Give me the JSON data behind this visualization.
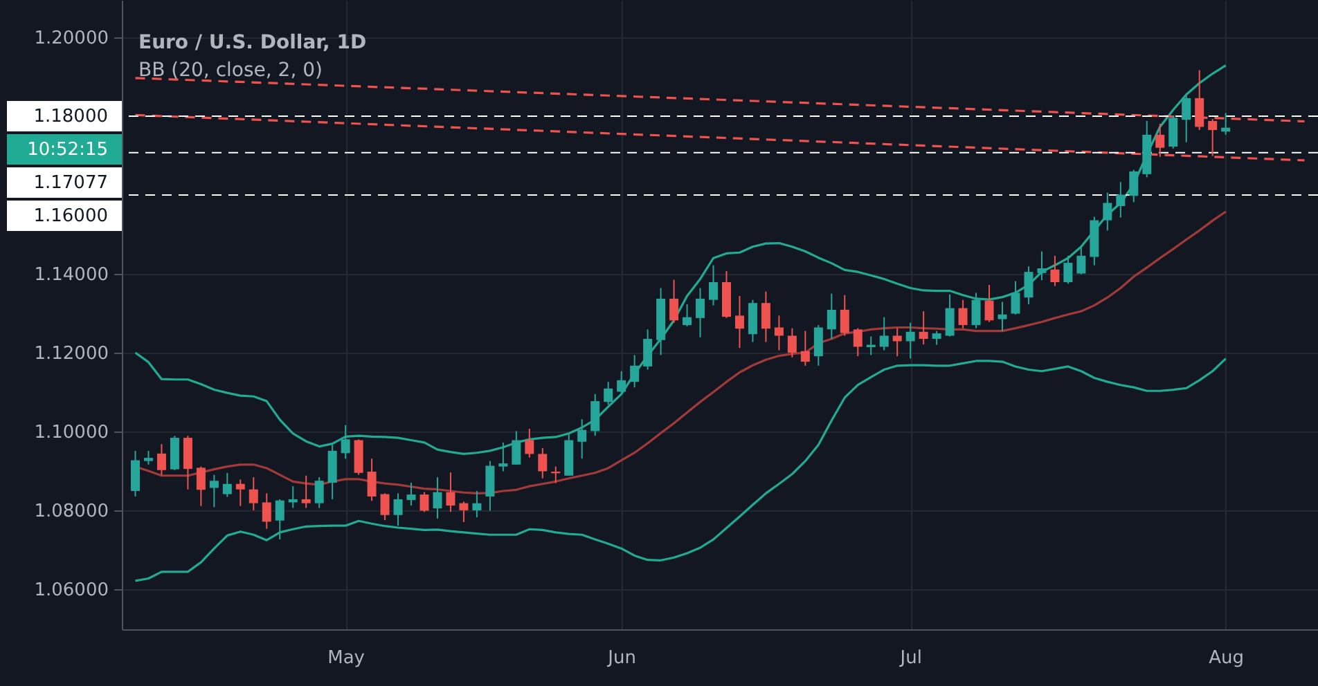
{
  "chart_data": {
    "type": "candlestick",
    "title": "Euro / U.S. Dollar, 1D",
    "subtitle": "BB (20, close, 2, 0)",
    "categories": [
      null,
      null,
      null,
      null,
      null,
      null,
      null,
      null,
      null,
      null,
      null,
      null,
      null,
      null,
      null,
      null,
      "May",
      null,
      null,
      null,
      null,
      null,
      null,
      null,
      null,
      null,
      null,
      null,
      null,
      null,
      null,
      null,
      null,
      null,
      null,
      null,
      null,
      "Jun",
      null,
      null,
      null,
      null,
      null,
      null,
      null,
      null,
      null,
      null,
      null,
      null,
      null,
      null,
      null,
      null,
      null,
      null,
      null,
      null,
      null,
      "Jul",
      null,
      null,
      null,
      null,
      null,
      null,
      null,
      null,
      null,
      null,
      null,
      null,
      null,
      null,
      null,
      null,
      null,
      null,
      null,
      null,
      null,
      null,
      null,
      "Aug",
      null,
      null,
      null,
      null,
      null,
      null
    ],
    "ohlc": [
      [
        1.0849,
        1.0951,
        1.0835,
        1.0927
      ],
      [
        1.0925,
        1.0951,
        1.0916,
        1.0933
      ],
      [
        1.0944,
        1.0968,
        1.089,
        1.0902
      ],
      [
        1.0904,
        1.0989,
        1.0902,
        1.0984
      ],
      [
        1.0984,
        1.0989,
        1.0853,
        1.0905
      ],
      [
        1.0908,
        1.0911,
        1.0811,
        1.0852
      ],
      [
        1.0857,
        1.089,
        1.0808,
        1.0875
      ],
      [
        1.0841,
        1.0895,
        1.0834,
        1.0867
      ],
      [
        1.0867,
        1.0878,
        1.0811,
        1.0853
      ],
      [
        1.0853,
        1.0884,
        1.08,
        1.0818
      ],
      [
        1.082,
        1.0843,
        1.0753,
        1.0771
      ],
      [
        1.0774,
        1.0828,
        1.0726,
        1.0825
      ],
      [
        1.082,
        1.0861,
        1.0806,
        1.0828
      ],
      [
        1.0828,
        1.0888,
        1.0806,
        1.0818
      ],
      [
        1.0818,
        1.0884,
        1.0806,
        1.0875
      ],
      [
        1.087,
        1.0966,
        1.0828,
        1.0951
      ],
      [
        1.0945,
        1.1016,
        1.0931,
        1.098
      ],
      [
        1.0978,
        1.098,
        1.089,
        1.0895
      ],
      [
        1.0898,
        1.0931,
        1.0824,
        1.0835
      ],
      [
        1.0841,
        1.0843,
        1.0775,
        1.0788
      ],
      [
        1.0788,
        1.0843,
        1.0761,
        1.0828
      ],
      [
        1.0826,
        1.087,
        1.0812,
        1.084
      ],
      [
        1.084,
        1.0846,
        1.0796,
        1.0799
      ],
      [
        1.0805,
        1.0884,
        1.0779,
        1.0846
      ],
      [
        1.0846,
        1.0896,
        1.0796,
        1.0812
      ],
      [
        1.0818,
        1.0822,
        1.077,
        1.08
      ],
      [
        1.08,
        1.0849,
        1.0782,
        1.0818
      ],
      [
        1.0835,
        1.0925,
        1.0799,
        1.0913
      ],
      [
        1.0911,
        1.0972,
        1.0899,
        1.0919
      ],
      [
        1.0916,
        1.1001,
        1.0916,
        1.0978
      ],
      [
        1.0978,
        1.1007,
        1.0934,
        1.0943
      ],
      [
        1.0943,
        1.0958,
        1.0881,
        1.0899
      ],
      [
        1.0898,
        1.0911,
        1.0869,
        1.0894
      ],
      [
        1.0888,
        1.0993,
        1.0888,
        1.0978
      ],
      [
        1.0974,
        1.1031,
        1.0931,
        1.1004
      ],
      [
        1.1001,
        1.1095,
        1.0989,
        1.1077
      ],
      [
        1.1075,
        1.1126,
        1.1068,
        1.1109
      ],
      [
        1.1101,
        1.1153,
        1.1098,
        1.113
      ],
      [
        1.1126,
        1.1194,
        1.1112,
        1.1167
      ],
      [
        1.1165,
        1.1259,
        1.1157,
        1.1235
      ],
      [
        1.1232,
        1.1364,
        1.1194,
        1.1337
      ],
      [
        1.1337,
        1.1385,
        1.1276,
        1.1282
      ],
      [
        1.127,
        1.1323,
        1.1267,
        1.129
      ],
      [
        1.1288,
        1.1364,
        1.1239,
        1.1337
      ],
      [
        1.1334,
        1.1422,
        1.132,
        1.1379
      ],
      [
        1.1379,
        1.1407,
        1.1288,
        1.1291
      ],
      [
        1.1294,
        1.1344,
        1.1212,
        1.1261
      ],
      [
        1.1247,
        1.1334,
        1.1227,
        1.1326
      ],
      [
        1.1326,
        1.1355,
        1.1227,
        1.1261
      ],
      [
        1.1264,
        1.1294,
        1.1206,
        1.1243
      ],
      [
        1.1243,
        1.1262,
        1.1188,
        1.12
      ],
      [
        1.1204,
        1.1255,
        1.1167,
        1.1177
      ],
      [
        1.1191,
        1.127,
        1.1167,
        1.1264
      ],
      [
        1.1259,
        1.135,
        1.1235,
        1.1309
      ],
      [
        1.1309,
        1.1346,
        1.1243,
        1.125
      ],
      [
        1.1259,
        1.1262,
        1.1191,
        1.1215
      ],
      [
        1.1214,
        1.1241,
        1.1194,
        1.122
      ],
      [
        1.1215,
        1.129,
        1.1206,
        1.1243
      ],
      [
        1.1243,
        1.1262,
        1.1191,
        1.1229
      ],
      [
        1.1229,
        1.1276,
        1.1185,
        1.1253
      ],
      [
        1.1253,
        1.1305,
        1.1221,
        1.1235
      ],
      [
        1.1235,
        1.1255,
        1.122,
        1.1249
      ],
      [
        1.1243,
        1.1348,
        1.1241,
        1.1313
      ],
      [
        1.1313,
        1.1334,
        1.1262,
        1.127
      ],
      [
        1.127,
        1.1352,
        1.1262,
        1.1334
      ],
      [
        1.1332,
        1.1372,
        1.1278,
        1.1282
      ],
      [
        1.1285,
        1.1329,
        1.1255,
        1.1297
      ],
      [
        1.1299,
        1.1381,
        1.1297,
        1.1352
      ],
      [
        1.134,
        1.1419,
        1.1323,
        1.1405
      ],
      [
        1.1402,
        1.1457,
        1.1384,
        1.1414
      ],
      [
        1.1411,
        1.1446,
        1.1369,
        1.1379
      ],
      [
        1.1379,
        1.1446,
        1.1375,
        1.1428
      ],
      [
        1.1401,
        1.1469,
        1.1399,
        1.1446
      ],
      [
        1.1443,
        1.1545,
        1.1422,
        1.1536
      ],
      [
        1.1536,
        1.1606,
        1.151,
        1.158
      ],
      [
        1.1572,
        1.1633,
        1.1543,
        1.1601
      ],
      [
        1.1598,
        1.1664,
        1.1582,
        1.166
      ],
      [
        1.1653,
        1.1788,
        1.1645,
        1.1753
      ],
      [
        1.1753,
        1.1781,
        1.1697,
        1.172
      ],
      [
        1.1723,
        1.1802,
        1.1718,
        1.1796
      ],
      [
        1.1791,
        1.1855,
        1.1734,
        1.1846
      ],
      [
        1.1846,
        1.1917,
        1.1765,
        1.1773
      ],
      [
        1.1788,
        1.1793,
        1.1699,
        1.1765
      ],
      [
        1.1761,
        1.1808,
        1.1753,
        1.1771
      ],
      null,
      null,
      null,
      null,
      null,
      null
    ],
    "colors": [
      "#26a69a",
      "#26a69a",
      "#ef5350",
      "#26a69a",
      "#ef5350",
      "#ef5350",
      "#26a69a",
      "#26a69a",
      "#ef5350",
      "#ef5350",
      "#ef5350",
      "#26a69a",
      "#26a69a",
      "#ef5350",
      "#26a69a",
      "#26a69a",
      "#26a69a",
      "#ef5350",
      "#ef5350",
      "#ef5350",
      "#26a69a",
      "#26a69a",
      "#ef5350",
      "#26a69a",
      "#ef5350",
      "#ef5350",
      "#26a69a",
      "#26a69a",
      "#26a69a",
      "#26a69a",
      "#ef5350",
      "#ef5350",
      "#ef5350",
      "#26a69a",
      "#26a69a",
      "#26a69a",
      "#26a69a",
      "#26a69a",
      "#26a69a",
      "#26a69a",
      "#26a69a",
      "#ef5350",
      "#26a69a",
      "#26a69a",
      "#26a69a",
      "#ef5350",
      "#ef5350",
      "#26a69a",
      "#ef5350",
      "#ef5350",
      "#ef5350",
      "#ef5350",
      "#26a69a",
      "#26a69a",
      "#ef5350",
      "#ef5350",
      "#26a69a",
      "#26a69a",
      "#ef5350",
      "#26a69a",
      "#ef5350",
      "#26a69a",
      "#26a69a",
      "#ef5350",
      "#26a69a",
      "#ef5350",
      "#26a69a",
      "#26a69a",
      "#26a69a",
      "#26a69a",
      "#ef5350",
      "#26a69a",
      "#26a69a",
      "#26a69a",
      "#26a69a",
      "#26a69a",
      "#26a69a",
      "#26a69a",
      "#ef5350",
      "#26a69a",
      "#26a69a",
      "#ef5350",
      "#ef5350",
      "#26a69a",
      null,
      null,
      null,
      null,
      null,
      null
    ],
    "series": [
      {
        "type": "line",
        "color": "#22ab94",
        "values": [
          1.12,
          1.1176,
          1.1133,
          1.1132,
          1.1132,
          1.112,
          1.1106,
          1.1098,
          1.1091,
          1.1089,
          1.1077,
          1.103,
          1.0995,
          1.0975,
          1.0962,
          1.0969,
          1.0987,
          1.0989,
          1.0987,
          1.0986,
          1.0984,
          1.0978,
          1.0972,
          1.0954,
          1.0948,
          1.0943,
          1.0946,
          1.0951,
          1.096,
          1.0972,
          1.098,
          1.0984,
          1.0986,
          1.0995,
          1.101,
          1.103,
          1.1063,
          1.1095,
          1.1147,
          1.1192,
          1.1235,
          1.1282,
          1.1344,
          1.1387,
          1.144,
          1.1452,
          1.1454,
          1.1469,
          1.1477,
          1.1478,
          1.1469,
          1.1457,
          1.1441,
          1.1427,
          1.141,
          1.1405,
          1.1396,
          1.1387,
          1.1375,
          1.1364,
          1.1358,
          1.1357,
          1.1357,
          1.1346,
          1.1337,
          1.1335,
          1.1341,
          1.1352,
          1.1372,
          1.1405,
          1.1422,
          1.144,
          1.1469,
          1.151,
          1.155,
          1.158,
          1.1627,
          1.1703,
          1.1773,
          1.1816,
          1.1855,
          1.1884,
          1.1908,
          1.1929,
          null,
          null,
          null,
          null,
          null,
          null
        ]
      },
      {
        "type": "line",
        "color": "#a33a3a",
        "values": [
          1.0911,
          1.09,
          1.0888,
          1.0888,
          1.0888,
          1.0896,
          1.0904,
          1.0911,
          1.0916,
          1.0916,
          1.0907,
          1.089,
          1.0873,
          1.0868,
          1.0865,
          1.0873,
          1.0879,
          1.0879,
          1.0873,
          1.0868,
          1.0865,
          1.086,
          1.0855,
          1.0853,
          1.0849,
          1.0845,
          1.0843,
          1.0844,
          1.0849,
          1.0852,
          1.0861,
          1.0867,
          1.0873,
          1.0881,
          1.0888,
          1.0895,
          1.0907,
          1.0927,
          1.0946,
          1.097,
          1.0996,
          1.1021,
          1.1048,
          1.1075,
          1.11,
          1.1126,
          1.115,
          1.1168,
          1.1182,
          1.1192,
          1.1197,
          1.12,
          1.1224,
          1.1235,
          1.1249,
          1.1253,
          1.1259,
          1.1262,
          1.1264,
          1.1264,
          1.1262,
          1.1261,
          1.1259,
          1.1259,
          1.1255,
          1.1255,
          1.1255,
          1.1262,
          1.127,
          1.1278,
          1.1288,
          1.1297,
          1.1305,
          1.132,
          1.134,
          1.1364,
          1.1393,
          1.1416,
          1.144,
          1.1463,
          1.1487,
          1.151,
          1.1535,
          1.1558,
          null,
          null,
          null,
          null,
          null,
          null
        ]
      },
      {
        "type": "line",
        "color": "#22ab94",
        "values": [
          1.0621,
          1.0627,
          1.0644,
          1.0644,
          1.0644,
          1.0668,
          1.0703,
          1.0736,
          1.0746,
          1.0738,
          1.0724,
          1.0744,
          1.0752,
          1.0759,
          1.076,
          1.0761,
          1.0761,
          1.0773,
          1.0766,
          1.076,
          1.0756,
          1.0753,
          1.075,
          1.0751,
          1.0747,
          1.0744,
          1.0741,
          1.0738,
          1.0738,
          1.0738,
          1.0752,
          1.075,
          1.0744,
          1.074,
          1.0738,
          1.0726,
          1.0715,
          1.0703,
          1.0685,
          1.0674,
          1.0673,
          1.068,
          1.0691,
          1.0705,
          1.0726,
          1.0755,
          1.0784,
          1.0814,
          1.0843,
          1.0867,
          1.0892,
          1.0925,
          1.0966,
          1.1028,
          1.1086,
          1.1118,
          1.1138,
          1.1157,
          1.1167,
          1.1168,
          1.1168,
          1.1167,
          1.1167,
          1.1173,
          1.1179,
          1.1179,
          1.1177,
          1.1165,
          1.1157,
          1.1153,
          1.1159,
          1.1165,
          1.1153,
          1.1136,
          1.1126,
          1.1118,
          1.1112,
          1.1103,
          1.1103,
          1.1106,
          1.111,
          1.113,
          1.1153,
          1.1185,
          null,
          null,
          null,
          null,
          null,
          null
        ]
      },
      {
        "type": "line",
        "color": "#f0524d",
        "line_style": "dashed",
        "values": [
          1.1897,
          null,
          null,
          null,
          null,
          null,
          null,
          null,
          null,
          null,
          null,
          null,
          null,
          null,
          null,
          null,
          null,
          null,
          null,
          null,
          null,
          null,
          null,
          null,
          null,
          null,
          null,
          null,
          null,
          null,
          null,
          null,
          null,
          null,
          null,
          null,
          null,
          null,
          null,
          null,
          null,
          null,
          null,
          null,
          null,
          null,
          null,
          null,
          null,
          null,
          null,
          null,
          null,
          null,
          null,
          null,
          null,
          null,
          null,
          null,
          null,
          null,
          null,
          null,
          null,
          null,
          null,
          null,
          null,
          null,
          null,
          null,
          null,
          null,
          null,
          null,
          null,
          null,
          null,
          null,
          null,
          null,
          null,
          null,
          null,
          null,
          null,
          null,
          null,
          1.1787
        ]
      },
      {
        "type": "line",
        "color": "#f0524d",
        "line_style": "dashed",
        "values": [
          1.1803,
          null,
          null,
          null,
          null,
          null,
          null,
          null,
          null,
          null,
          null,
          null,
          null,
          null,
          null,
          null,
          null,
          null,
          null,
          null,
          null,
          null,
          null,
          null,
          null,
          null,
          null,
          null,
          null,
          null,
          null,
          null,
          null,
          null,
          null,
          null,
          null,
          null,
          null,
          null,
          null,
          null,
          null,
          null,
          null,
          null,
          null,
          null,
          null,
          null,
          null,
          null,
          null,
          null,
          null,
          null,
          null,
          null,
          null,
          null,
          null,
          null,
          null,
          null,
          null,
          null,
          null,
          null,
          null,
          null,
          null,
          null,
          null,
          null,
          null,
          null,
          null,
          null,
          null,
          null,
          null,
          null,
          null,
          null,
          null,
          null,
          null,
          null,
          null,
          1.1688
        ]
      }
    ],
    "ref_lines": [
      {
        "axis": "y",
        "value": 1.18,
        "label": "1.18000",
        "color": "#ffffff",
        "line_style": "dashed"
      },
      {
        "axis": "y",
        "value": 1.17077,
        "label": "1.17077",
        "color": "#ffffff",
        "line_style": "dashed"
      },
      {
        "axis": "y",
        "value": 1.16,
        "label": "1.16000",
        "color": "#ffffff",
        "line_style": "dashed"
      }
    ],
    "annotations": [
      "10:52:15"
    ],
    "ylim": [
      1.0498,
      1.2095
    ],
    "yticks": [
      {
        "value": 1.06,
        "label": "1.06000"
      },
      {
        "value": 1.08,
        "label": "1.08000"
      },
      {
        "value": 1.1,
        "label": "1.10000"
      },
      {
        "value": 1.12,
        "label": "1.12000"
      },
      {
        "value": 1.14,
        "label": "1.14000"
      },
      {
        "value": 1.2,
        "label": "1.20000"
      }
    ],
    "grid": true
  }
}
